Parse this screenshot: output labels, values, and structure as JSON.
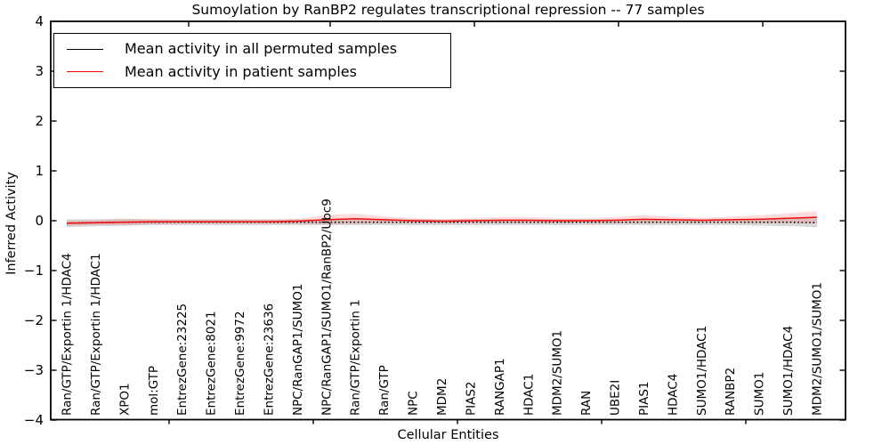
{
  "title": "Sumoylation by RanBP2 regulates transcriptional repression -- 77 samples",
  "chart_data": {
    "type": "line",
    "title": "Sumoylation by RanBP2 regulates transcriptional repression -- 77 samples",
    "xlabel": "Cellular Entities",
    "ylabel": "Inferred Activity",
    "ylim": [
      -4,
      4
    ],
    "grid": false,
    "legend_position": "upper left",
    "yticks": [
      {
        "label": "4",
        "value": 4
      },
      {
        "label": "3",
        "value": 3
      },
      {
        "label": "2",
        "value": 2
      },
      {
        "label": "1",
        "value": 1
      },
      {
        "label": "0",
        "value": 0
      },
      {
        "label": "−1",
        "value": -1
      },
      {
        "label": "−2",
        "value": -2
      },
      {
        "label": "−3",
        "value": -3
      },
      {
        "label": "−4",
        "value": -4
      }
    ],
    "categories": [
      "Ran/GTP/Exportin 1/HDAC4",
      "Ran/GTP/Exportin 1/HDAC1",
      "XPO1",
      "mol:GTP",
      "EntrezGene:23225",
      "EntrezGene:8021",
      "EntrezGene:9972",
      "EntrezGene:23636",
      "NPC/RanGAP1/SUMO1",
      "NPC/RanGAP1/SUMO1/RanBP2/Ubc9",
      "Ran/GTP/Exportin 1",
      "Ran/GTP",
      "NPC",
      "MDM2",
      "PIAS2",
      "RANGAP1",
      "HDAC1",
      "MDM2/SUMO1",
      "RAN",
      "UBE2I",
      "PIAS1",
      "HDAC4",
      "SUMO1/HDAC1",
      "RANBP2",
      "SUMO1",
      "SUMO1/HDAC4",
      "MDM2/SUMO1/SUMO1"
    ],
    "series": [
      {
        "name": "Mean activity in all permuted samples",
        "color": "#000000",
        "line_style": "dotted",
        "band_color": "rgba(120,120,120,0.28)",
        "values": [
          -0.05,
          -0.04,
          -0.03,
          -0.03,
          -0.03,
          -0.03,
          -0.03,
          -0.03,
          -0.03,
          -0.03,
          -0.03,
          -0.03,
          -0.03,
          -0.03,
          -0.03,
          -0.03,
          -0.03,
          -0.03,
          -0.03,
          -0.03,
          -0.03,
          -0.03,
          -0.03,
          -0.03,
          -0.03,
          -0.03,
          -0.04
        ],
        "band_halfwidth": [
          0.08,
          0.07,
          0.07,
          0.06,
          0.06,
          0.06,
          0.06,
          0.06,
          0.06,
          0.06,
          0.06,
          0.06,
          0.06,
          0.06,
          0.06,
          0.06,
          0.06,
          0.06,
          0.06,
          0.06,
          0.06,
          0.06,
          0.06,
          0.06,
          0.07,
          0.08,
          0.09
        ]
      },
      {
        "name": "Mean activity in patient samples",
        "color": "#f10c0c",
        "line_style": "solid",
        "band_color": "rgba(255,0,0,0.14)",
        "values": [
          -0.05,
          -0.04,
          -0.03,
          -0.02,
          -0.02,
          -0.02,
          -0.02,
          -0.02,
          -0.01,
          0.02,
          0.04,
          0.02,
          0.0,
          -0.01,
          0.0,
          0.01,
          0.01,
          0.0,
          0.0,
          0.01,
          0.03,
          0.02,
          0.01,
          0.02,
          0.03,
          0.05,
          0.07
        ],
        "band_halfwidth": [
          0.05,
          0.05,
          0.06,
          0.05,
          0.04,
          0.04,
          0.04,
          0.04,
          0.05,
          0.09,
          0.1,
          0.07,
          0.05,
          0.04,
          0.05,
          0.06,
          0.06,
          0.05,
          0.05,
          0.06,
          0.08,
          0.06,
          0.05,
          0.06,
          0.08,
          0.1,
          0.12
        ]
      }
    ]
  }
}
